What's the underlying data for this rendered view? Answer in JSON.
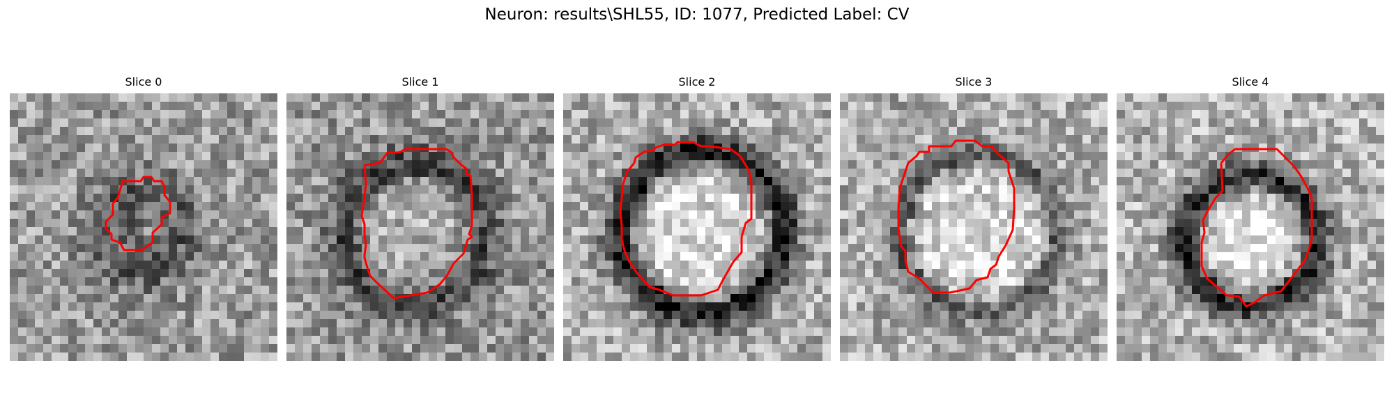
{
  "figure": {
    "title": "Neuron: results\\SHL55, ID: 1077, Predicted Label: CV"
  },
  "panels": [
    {
      "title": "Slice 0"
    },
    {
      "title": "Slice 1"
    },
    {
      "title": "Slice 2"
    },
    {
      "title": "Slice 3"
    },
    {
      "title": "Slice 4"
    }
  ],
  "colors": {
    "contour": "#ff0000",
    "background": "#ffffff"
  }
}
